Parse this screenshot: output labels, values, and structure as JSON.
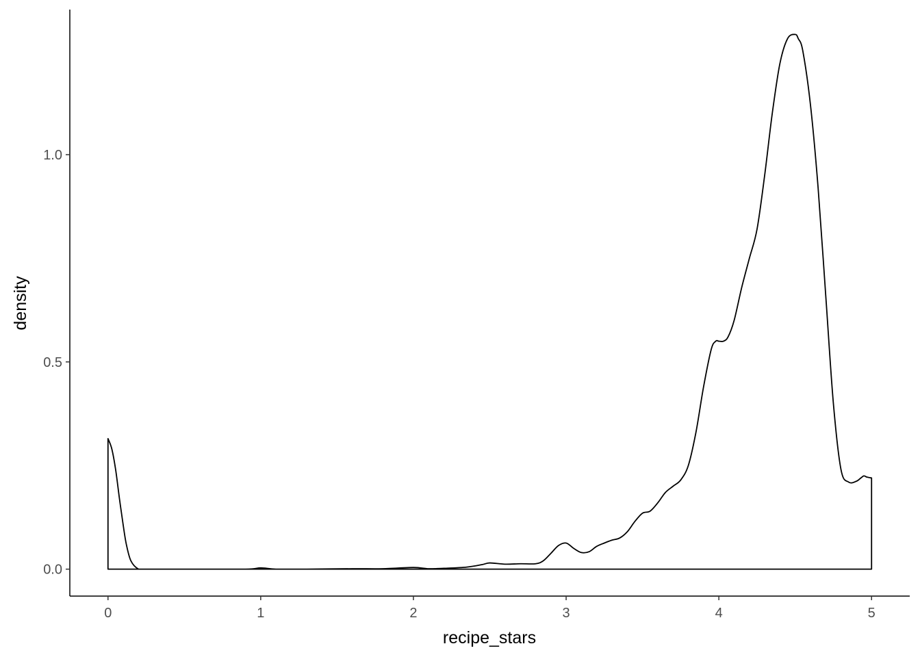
{
  "chart_data": {
    "type": "area",
    "title": "",
    "xlabel": "recipe_stars",
    "ylabel": "density",
    "xlim": [
      -0.25,
      5.25
    ],
    "ylim": [
      -0.065,
      1.35
    ],
    "x_ticks": [
      0,
      1,
      2,
      3,
      4,
      5
    ],
    "x_tick_labels": [
      "0",
      "1",
      "2",
      "3",
      "4",
      "5"
    ],
    "y_ticks": [
      0.0,
      0.5,
      1.0
    ],
    "y_tick_labels": [
      "0.0",
      "0.5",
      "1.0"
    ],
    "grid": false,
    "legend": "none",
    "fill": "none",
    "line_color": "#000000",
    "series": [
      {
        "x": [
          0.0,
          0.025,
          0.05,
          0.075,
          0.1,
          0.12,
          0.15,
          0.2,
          0.25,
          0.5,
          0.9,
          1.0,
          1.1,
          1.3,
          1.6,
          1.8,
          2.0,
          2.1,
          2.2,
          2.35,
          2.45,
          2.5,
          2.6,
          2.7,
          2.8,
          2.85,
          2.9,
          2.95,
          3.0,
          3.05,
          3.1,
          3.15,
          3.2,
          3.25,
          3.3,
          3.35,
          3.4,
          3.45,
          3.5,
          3.55,
          3.6,
          3.65,
          3.7,
          3.75,
          3.8,
          3.85,
          3.9,
          3.95,
          3.98,
          4.0,
          4.03,
          4.06,
          4.1,
          4.15,
          4.2,
          4.25,
          4.3,
          4.35,
          4.4,
          4.45,
          4.5,
          4.52,
          4.55,
          4.6,
          4.65,
          4.7,
          4.75,
          4.8,
          4.85,
          4.9,
          4.93,
          4.95,
          4.97,
          5.0
        ],
        "y": [
          0.315,
          0.29,
          0.24,
          0.17,
          0.105,
          0.06,
          0.02,
          0.0,
          0.0,
          0.0,
          0.0,
          0.003,
          0.0,
          0.0,
          0.001,
          0.001,
          0.004,
          0.001,
          0.002,
          0.005,
          0.011,
          0.015,
          0.012,
          0.013,
          0.013,
          0.02,
          0.038,
          0.057,
          0.063,
          0.05,
          0.04,
          0.042,
          0.055,
          0.063,
          0.07,
          0.075,
          0.09,
          0.115,
          0.135,
          0.14,
          0.16,
          0.185,
          0.2,
          0.215,
          0.25,
          0.33,
          0.44,
          0.53,
          0.55,
          0.55,
          0.55,
          0.56,
          0.6,
          0.68,
          0.75,
          0.82,
          0.95,
          1.1,
          1.22,
          1.28,
          1.29,
          1.28,
          1.25,
          1.12,
          0.92,
          0.66,
          0.4,
          0.24,
          0.21,
          0.212,
          0.22,
          0.225,
          0.222,
          0.22
        ]
      }
    ]
  }
}
